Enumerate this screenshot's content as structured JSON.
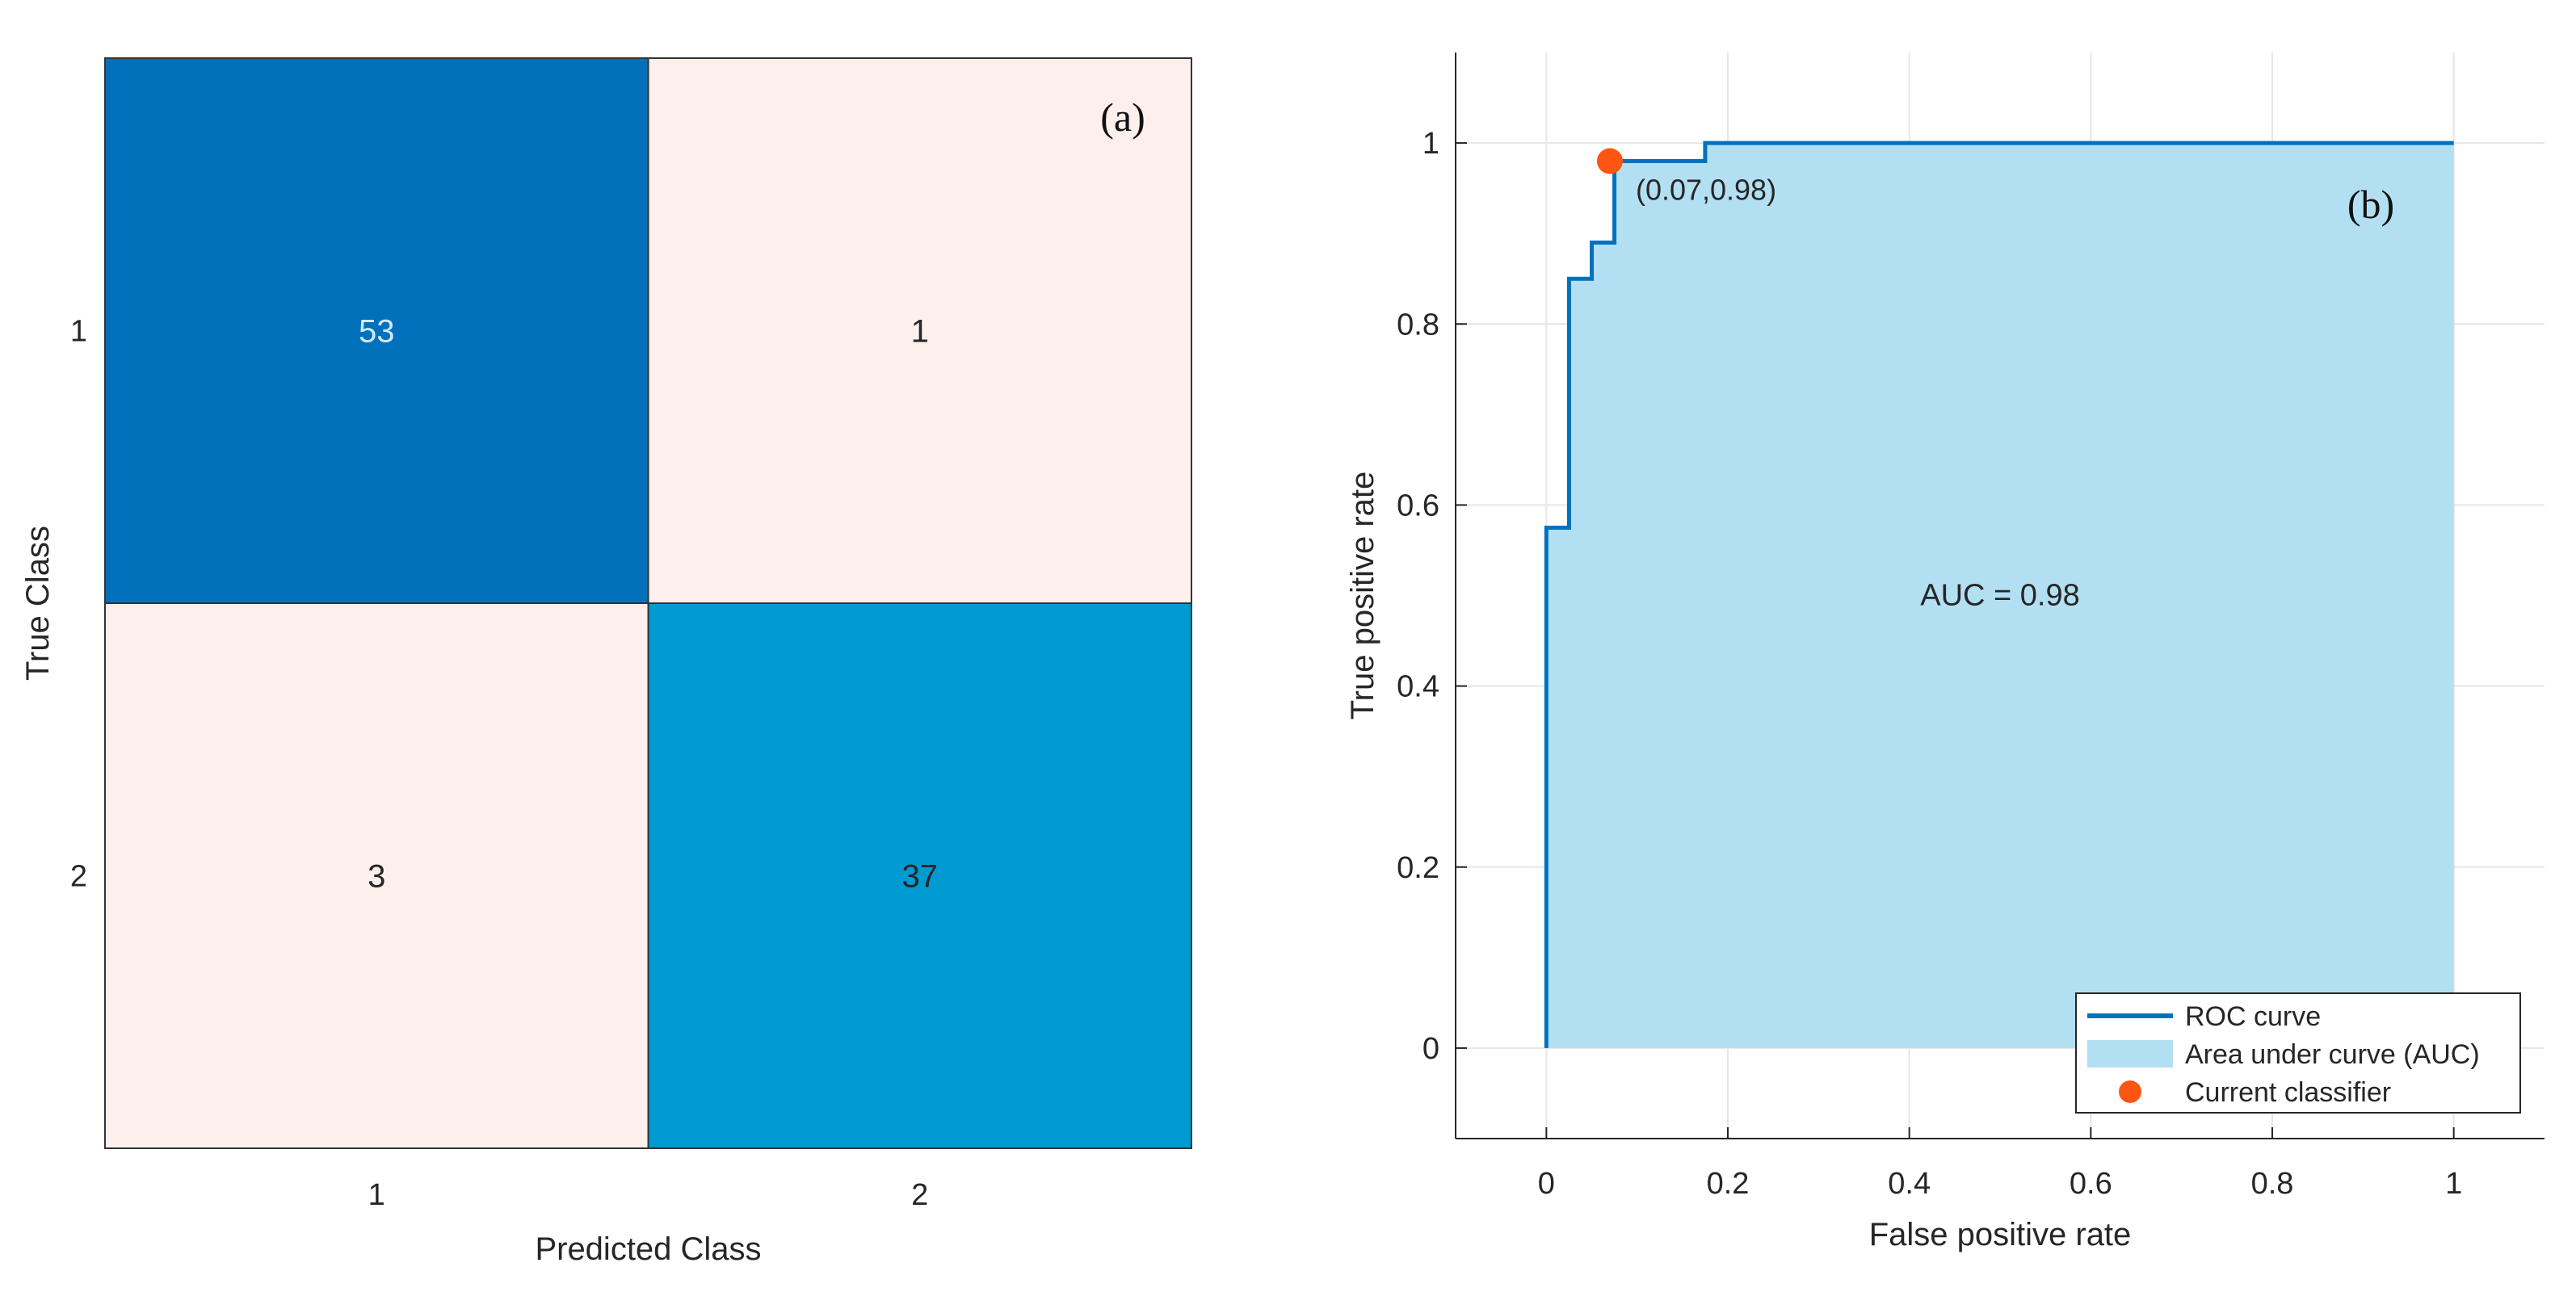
{
  "figure": {
    "confusion_label": "(a)",
    "roc_label": "(b)"
  },
  "colors": {
    "dark_blue": "#0070bb",
    "mid_blue": "#009ad3",
    "light_peach": "#fdf0ec",
    "roc_line": "#0072bd",
    "roc_fill": "#b3dff2",
    "marker": "#ff5513",
    "axis": "#262626",
    "grid": "#e6e6e6"
  },
  "chart_data": [
    {
      "type": "heatmap",
      "title": "",
      "panel_label": "(a)",
      "xlabel": "Predicted Class",
      "ylabel": "True Class",
      "x_categories": [
        "1",
        "2"
      ],
      "y_categories": [
        "1",
        "2"
      ],
      "values": [
        [
          53,
          1
        ],
        [
          3,
          37
        ]
      ],
      "cell_text": [
        [
          "53",
          "1"
        ],
        [
          "3",
          "37"
        ]
      ]
    },
    {
      "type": "line",
      "title": "",
      "panel_label": "(b)",
      "xlabel": "False positive rate",
      "ylabel": "True positive rate",
      "xlim": [
        -0.1,
        1.1
      ],
      "ylim": [
        -0.1,
        1.1
      ],
      "x_ticks": [
        0,
        0.2,
        0.4,
        0.6,
        0.8,
        1
      ],
      "x_tick_labels": [
        "0",
        "0.2",
        "0.4",
        "0.6",
        "0.8",
        "1"
      ],
      "y_ticks": [
        0,
        0.2,
        0.4,
        0.6,
        0.8,
        1
      ],
      "y_tick_labels": [
        "0",
        "0.2",
        "0.4",
        "0.6",
        "0.8",
        "1"
      ],
      "grid": true,
      "series": [
        {
          "name": "ROC curve",
          "x": [
            0,
            0,
            0.025,
            0.025,
            0.05,
            0.05,
            0.075,
            0.075,
            0.175,
            0.175,
            1
          ],
          "y": [
            0,
            0.575,
            0.575,
            0.85,
            0.85,
            0.89,
            0.89,
            0.98,
            0.98,
            1,
            1
          ]
        }
      ],
      "area_label": "Area under curve (AUC)",
      "operating_point": {
        "name": "Current classifier",
        "x": 0.07,
        "y": 0.98,
        "label": "(0.07,0.98)"
      },
      "annotation": "AUC = 0.98",
      "legend": {
        "position": "bottom-right",
        "entries": [
          "ROC curve",
          "Area under curve (AUC)",
          "Current classifier"
        ]
      }
    }
  ]
}
